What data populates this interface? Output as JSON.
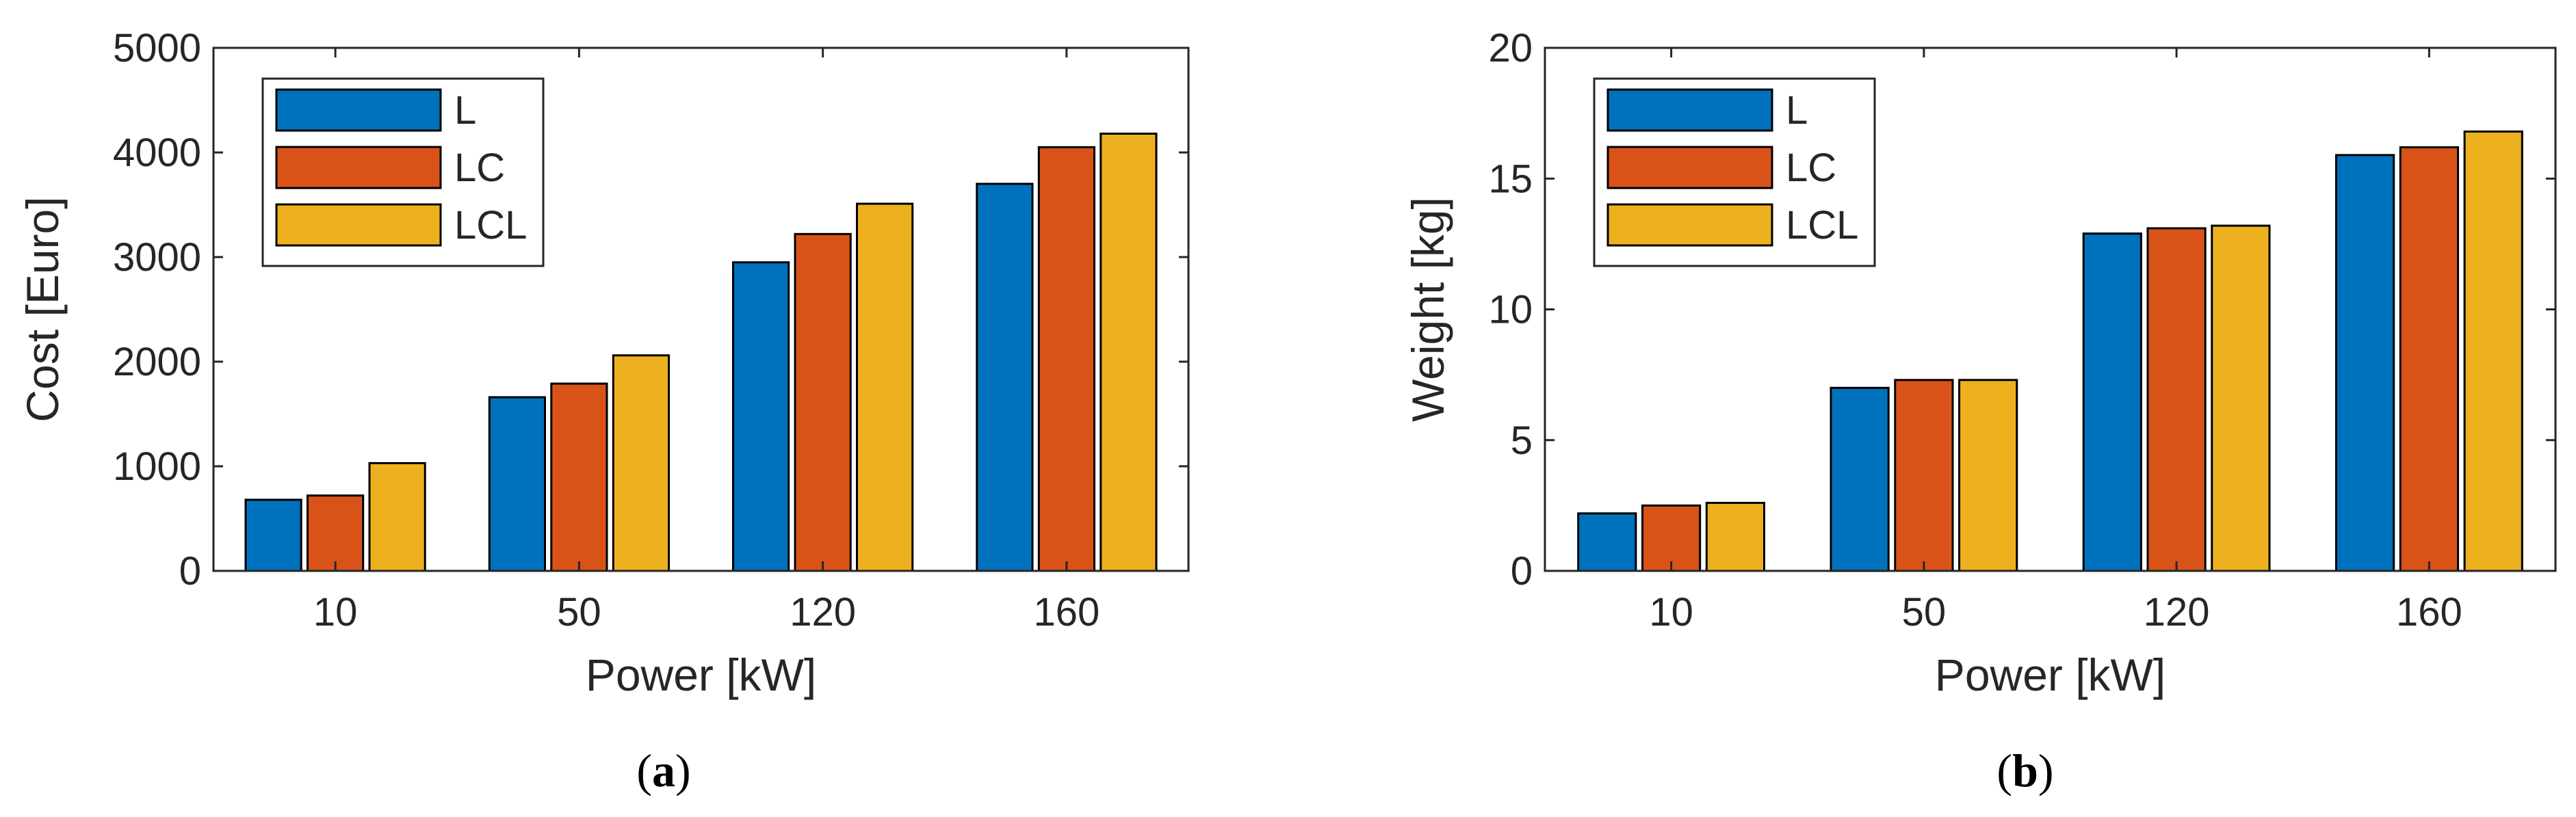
{
  "figure": {
    "captions": [
      {
        "open": "(",
        "letter": "a",
        "close": ")"
      },
      {
        "open": "(",
        "letter": "b",
        "close": ")"
      }
    ]
  },
  "chart_data": [
    {
      "type": "bar",
      "title": "",
      "xlabel": "Power [kW]",
      "ylabel": "Cost [Euro]",
      "categories": [
        "10",
        "50",
        "120",
        "160"
      ],
      "ylim": [
        0,
        5000
      ],
      "yticks": [
        "0",
        "1000",
        "2000",
        "3000",
        "4000",
        "5000"
      ],
      "legend_position": "top-left",
      "series": [
        {
          "name": "L",
          "color": "#0072BD",
          "values": [
            680,
            1660,
            2950,
            3700
          ]
        },
        {
          "name": "LC",
          "color": "#D95319",
          "values": [
            720,
            1790,
            3220,
            4050
          ]
        },
        {
          "name": "LCL",
          "color": "#EDB120",
          "values": [
            1030,
            2060,
            3510,
            4180
          ]
        }
      ]
    },
    {
      "type": "bar",
      "title": "",
      "xlabel": "Power [kW]",
      "ylabel": "Weight [kg]",
      "categories": [
        "10",
        "50",
        "120",
        "160"
      ],
      "ylim": [
        0,
        20
      ],
      "yticks": [
        "0",
        "5",
        "10",
        "15",
        "20"
      ],
      "legend_position": "top-left",
      "series": [
        {
          "name": "L",
          "color": "#0072BD",
          "values": [
            2.2,
            7.0,
            12.9,
            15.9
          ]
        },
        {
          "name": "LC",
          "color": "#D95319",
          "values": [
            2.5,
            7.3,
            13.1,
            16.2
          ]
        },
        {
          "name": "LCL",
          "color": "#EDB120",
          "values": [
            2.6,
            7.3,
            13.2,
            16.8
          ]
        }
      ]
    }
  ]
}
